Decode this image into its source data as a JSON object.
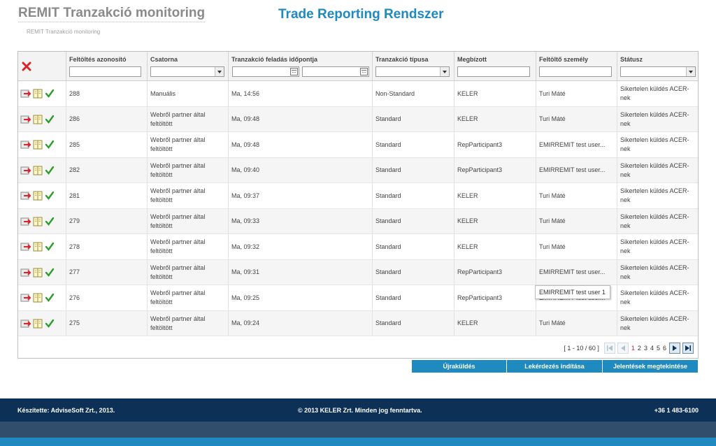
{
  "header": {
    "app_title": "REMIT Tranzakció monitoring",
    "breadcrumb": "REMIT Tranzakció monitoring",
    "system_title": "Trade Reporting Rendszer"
  },
  "columns": {
    "upload_id": "Feltöltés azonosító",
    "channel": "Csatorna",
    "submit_time": "Tranzakció feladás időpontja",
    "tx_type": "Tranzakció típusa",
    "principal": "Megbízott",
    "uploader": "Feltöltő személy",
    "status": "Státusz"
  },
  "rows": [
    {
      "id": "288",
      "channel": "Manuális",
      "time": "Ma, 14:56",
      "type": "Non-Standard",
      "principal": "KELER",
      "uploader": "Turi Máté",
      "status": "Sikertelen küldés ACER-nek"
    },
    {
      "id": "286",
      "channel": "Webről partner által feltöltött",
      "time": "Ma, 09:48",
      "type": "Standard",
      "principal": "KELER",
      "uploader": "Turi Máté",
      "status": "Sikertelen küldés ACER-nek"
    },
    {
      "id": "285",
      "channel": "Webről partner által feltöltött",
      "time": "Ma, 09:48",
      "type": "Standard",
      "principal": "RepParticipant3",
      "uploader": "EMIRREMIT test user...",
      "status": "Sikertelen küldés ACER-nek"
    },
    {
      "id": "282",
      "channel": "Webről partner által feltöltött",
      "time": "Ma, 09:40",
      "type": "Standard",
      "principal": "RepParticipant3",
      "uploader": "EMIRREMIT test user...",
      "status": "Sikertelen küldés ACER-nek"
    },
    {
      "id": "281",
      "channel": "Webről partner által feltöltött",
      "time": "Ma, 09:37",
      "type": "Standard",
      "principal": "KELER",
      "uploader": "Turi Máté",
      "status": "Sikertelen küldés ACER-nek"
    },
    {
      "id": "279",
      "channel": "Webről partner által feltöltött",
      "time": "Ma, 09:33",
      "type": "Standard",
      "principal": "KELER",
      "uploader": "Turi Máté",
      "status": "Sikertelen küldés ACER-nek"
    },
    {
      "id": "278",
      "channel": "Webről partner által feltöltött",
      "time": "Ma, 09:32",
      "type": "Standard",
      "principal": "KELER",
      "uploader": "Turi Máté",
      "status": "Sikertelen küldés ACER-nek"
    },
    {
      "id": "277",
      "channel": "Webről partner által feltöltött",
      "time": "Ma, 09:31",
      "type": "Standard",
      "principal": "RepParticipant3",
      "uploader": "EMIRREMIT test user...",
      "status": "Sikertelen küldés ACER-nek"
    },
    {
      "id": "276",
      "channel": "Webről partner által feltöltött",
      "time": "Ma, 09:25",
      "type": "Standard",
      "principal": "RepParticipant3",
      "uploader": "EMIRREMIT test user...",
      "status": "Sikertelen küldés ACER-nek"
    },
    {
      "id": "275",
      "channel": "Webről partner által feltöltött",
      "time": "Ma, 09:24",
      "type": "Standard",
      "principal": "KELER",
      "uploader": "Turi Máté",
      "status": "Sikertelen küldés ACER-nek"
    }
  ],
  "tooltip": "EMIRREMIT test user 1",
  "pager": {
    "info": "[ 1 - 10 / 60 ]",
    "pages": [
      "1",
      "2",
      "3",
      "4",
      "5",
      "6"
    ],
    "current": "1"
  },
  "actions": {
    "resend": "Újraküldés",
    "query": "Lekérdezés indítása",
    "reports": "Jelentések megtekintése"
  },
  "footer": {
    "made_by": "Készítette: AdviseSoft Zrt., 2013.",
    "copyright": "© 2013 KELER Zrt. Minden jog fenntartva.",
    "phone": "+36 1 483-6100"
  },
  "colors": {
    "accent": "#1f8ac0",
    "footer_bg": "#0d3057",
    "current_page": "#d9212a"
  },
  "icons": [
    "clear-filter-icon",
    "resend-icon",
    "details-icon",
    "success-check-icon",
    "first-page-icon",
    "prev-page-icon",
    "next-page-icon",
    "last-page-icon",
    "calendar-icon"
  ]
}
